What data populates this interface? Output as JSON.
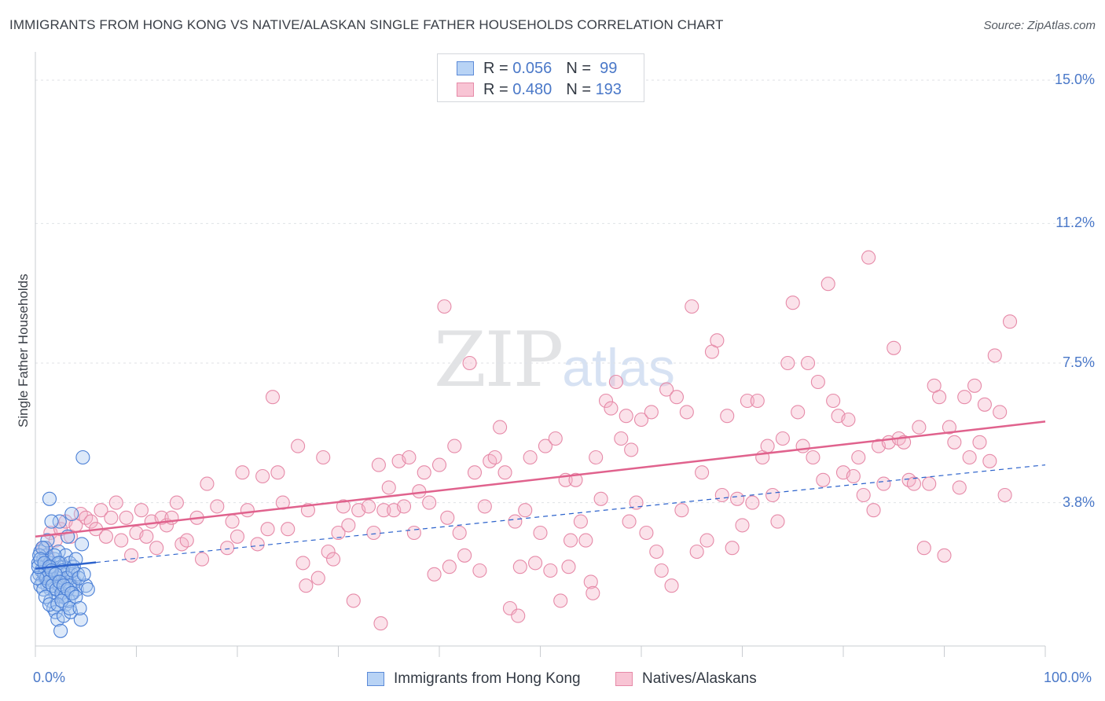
{
  "header": {
    "title": "IMMIGRANTS FROM HONG KONG VS NATIVE/ALASKAN SINGLE FATHER HOUSEHOLDS CORRELATION CHART",
    "source": "Source: ZipAtlas.com"
  },
  "watermark": {
    "zip": "ZIP",
    "atlas": "atlas"
  },
  "legend": {
    "rows": [
      {
        "r_label": "R =",
        "r_value": "0.056",
        "n_label": "N =",
        "n_value": "99"
      },
      {
        "r_label": "R =",
        "r_value": "0.480",
        "n_label": "N =",
        "n_value": "193"
      }
    ]
  },
  "colors": {
    "blue_fill": "#a9c8f0",
    "blue_stroke": "#4a7fd6",
    "blue_line": "#2d63cc",
    "pink_fill": "#f5b3c8",
    "pink_stroke": "#e68aa8",
    "pink_line": "#e0628d",
    "grid": "#dfe2e6",
    "axis_text": "#4a78c8"
  },
  "chart_data": {
    "type": "scatter",
    "title": "IMMIGRANTS FROM HONG KONG VS NATIVE/ALASKAN SINGLE FATHER HOUSEHOLDS CORRELATION CHART",
    "xlabel": "",
    "ylabel": "Single Father Households",
    "x_unit": "%",
    "y_unit": "%",
    "xlim": [
      0,
      100
    ],
    "ylim": [
      0,
      15.5
    ],
    "x_tick_labels": [
      "0.0%",
      "100.0%"
    ],
    "y_ticks": [
      {
        "value": 3.8,
        "label": "3.8%"
      },
      {
        "value": 7.5,
        "label": "7.5%"
      },
      {
        "value": 11.2,
        "label": "11.2%"
      },
      {
        "value": 15.0,
        "label": "15.0%"
      }
    ],
    "grid": "horizontal dashed",
    "legend_position": "bottom-center",
    "series": [
      {
        "name": "Immigrants from Hong Kong",
        "R": 0.056,
        "N": 99,
        "trend": {
          "x": [
            0,
            100
          ],
          "y": [
            2.05,
            4.8
          ],
          "observed_x_max": 6,
          "style": "solid within data range, dashed extrapolation"
        },
        "points": [
          [
            0.3,
            2.2
          ],
          [
            0.4,
            1.9
          ],
          [
            0.5,
            2.5
          ],
          [
            0.6,
            2.0
          ],
          [
            0.7,
            1.7
          ],
          [
            0.8,
            2.3
          ],
          [
            0.9,
            2.1
          ],
          [
            1.0,
            1.8
          ],
          [
            1.1,
            2.4
          ],
          [
            1.2,
            1.6
          ],
          [
            1.3,
            2.0
          ],
          [
            1.4,
            2.2
          ],
          [
            1.5,
            1.5
          ],
          [
            1.6,
            1.9
          ],
          [
            1.7,
            2.1
          ],
          [
            1.8,
            1.7
          ],
          [
            1.9,
            2.3
          ],
          [
            2.0,
            1.4
          ],
          [
            2.1,
            2.0
          ],
          [
            2.2,
            1.8
          ],
          [
            2.3,
            2.5
          ],
          [
            2.4,
            1.6
          ],
          [
            2.5,
            2.2
          ],
          [
            2.6,
            1.9
          ],
          [
            2.7,
            1.3
          ],
          [
            2.8,
            2.1
          ],
          [
            2.9,
            1.7
          ],
          [
            3.0,
            2.4
          ],
          [
            3.1,
            1.5
          ],
          [
            3.2,
            2.0
          ],
          [
            3.3,
            1.8
          ],
          [
            3.4,
            2.2
          ],
          [
            3.5,
            1.6
          ],
          [
            3.6,
            1.9
          ],
          [
            3.7,
            1.4
          ],
          [
            3.8,
            2.1
          ],
          [
            3.9,
            1.7
          ],
          [
            4.0,
            2.3
          ],
          [
            4.1,
            1.5
          ],
          [
            4.2,
            1.9
          ],
          [
            0.5,
            1.6
          ],
          [
            0.8,
            1.5
          ],
          [
            1.0,
            2.6
          ],
          [
            1.2,
            2.8
          ],
          [
            1.5,
            1.2
          ],
          [
            1.8,
            1.0
          ],
          [
            2.0,
            0.9
          ],
          [
            2.2,
            0.7
          ],
          [
            2.5,
            0.4
          ],
          [
            2.8,
            0.8
          ],
          [
            3.0,
            1.1
          ],
          [
            3.5,
            0.9
          ],
          [
            4.5,
            0.7
          ],
          [
            5.0,
            1.6
          ],
          [
            4.6,
            2.7
          ],
          [
            3.2,
            2.9
          ],
          [
            2.4,
            3.3
          ],
          [
            1.6,
            3.3
          ],
          [
            1.4,
            3.9
          ],
          [
            3.6,
            3.5
          ],
          [
            4.7,
            5.0
          ],
          [
            0.6,
            2.0
          ],
          [
            0.9,
            1.9
          ],
          [
            1.1,
            1.8
          ],
          [
            1.3,
            1.7
          ],
          [
            1.7,
            1.6
          ],
          [
            2.1,
            1.5
          ],
          [
            2.6,
            1.4
          ],
          [
            2.9,
            1.3
          ],
          [
            3.3,
            1.2
          ],
          [
            0.4,
            2.4
          ],
          [
            0.7,
            2.6
          ],
          [
            1.9,
            2.4
          ],
          [
            2.3,
            2.2
          ],
          [
            2.7,
            2.0
          ],
          [
            3.1,
            1.8
          ],
          [
            3.4,
            1.6
          ],
          [
            3.7,
            2.0
          ],
          [
            4.3,
            1.8
          ],
          [
            4.8,
            1.9
          ],
          [
            0.2,
            1.8
          ],
          [
            0.3,
            2.1
          ],
          [
            0.5,
            2.3
          ],
          [
            0.9,
            2.2
          ],
          [
            1.4,
            2.1
          ],
          [
            1.6,
            2.0
          ],
          [
            2.0,
            1.9
          ],
          [
            2.4,
            1.7
          ],
          [
            2.8,
            1.6
          ],
          [
            3.2,
            1.5
          ],
          [
            3.6,
            1.4
          ],
          [
            4.0,
            1.3
          ],
          [
            1.0,
            1.3
          ],
          [
            1.4,
            1.1
          ],
          [
            2.2,
            1.1
          ],
          [
            2.6,
            1.2
          ],
          [
            3.4,
            1.0
          ],
          [
            4.4,
            1.0
          ],
          [
            5.2,
            1.5
          ]
        ]
      },
      {
        "name": "Natives/Alaskans",
        "R": 0.48,
        "N": 193,
        "trend": {
          "x": [
            0,
            100
          ],
          "y": [
            2.9,
            5.95
          ]
        },
        "points": [
          [
            0.8,
            2.6
          ],
          [
            1.2,
            2.4
          ],
          [
            1.5,
            3.0
          ],
          [
            2.0,
            2.8
          ],
          [
            2.5,
            3.1
          ],
          [
            3.0,
            3.3
          ],
          [
            3.5,
            2.9
          ],
          [
            4.0,
            3.2
          ],
          [
            4.5,
            3.5
          ],
          [
            5.0,
            3.4
          ],
          [
            5.5,
            3.3
          ],
          [
            6.0,
            3.1
          ],
          [
            6.5,
            3.6
          ],
          [
            7.0,
            2.9
          ],
          [
            7.5,
            3.4
          ],
          [
            8.0,
            3.8
          ],
          [
            8.5,
            2.8
          ],
          [
            9.0,
            3.4
          ],
          [
            9.5,
            2.4
          ],
          [
            10.0,
            3.0
          ],
          [
            10.5,
            3.6
          ],
          [
            11.0,
            2.9
          ],
          [
            11.5,
            3.3
          ],
          [
            12.0,
            2.6
          ],
          [
            12.5,
            3.4
          ],
          [
            13.0,
            3.2
          ],
          [
            13.5,
            3.4
          ],
          [
            14.0,
            3.8
          ],
          [
            14.5,
            2.7
          ],
          [
            15.0,
            2.8
          ],
          [
            16.0,
            3.4
          ],
          [
            16.5,
            2.3
          ],
          [
            17.0,
            4.3
          ],
          [
            18.0,
            3.7
          ],
          [
            19.0,
            2.6
          ],
          [
            19.5,
            3.3
          ],
          [
            20.0,
            2.9
          ],
          [
            20.5,
            4.6
          ],
          [
            21.0,
            3.6
          ],
          [
            22.0,
            2.7
          ],
          [
            23.0,
            3.1
          ],
          [
            23.5,
            6.6
          ],
          [
            24.0,
            4.6
          ],
          [
            24.5,
            3.8
          ],
          [
            25.0,
            3.1
          ],
          [
            26.0,
            5.3
          ],
          [
            26.5,
            2.2
          ],
          [
            27.0,
            3.6
          ],
          [
            28.0,
            1.8
          ],
          [
            28.5,
            5.0
          ],
          [
            29.0,
            2.5
          ],
          [
            29.5,
            2.3
          ],
          [
            30.0,
            3.0
          ],
          [
            30.5,
            3.7
          ],
          [
            31.0,
            3.2
          ],
          [
            32.0,
            3.6
          ],
          [
            33.0,
            3.7
          ],
          [
            33.5,
            3.0
          ],
          [
            34.0,
            4.8
          ],
          [
            34.5,
            3.6
          ],
          [
            35.0,
            4.2
          ],
          [
            35.5,
            3.6
          ],
          [
            36.0,
            4.9
          ],
          [
            36.5,
            3.7
          ],
          [
            37.0,
            5.0
          ],
          [
            37.5,
            3.0
          ],
          [
            38.0,
            4.1
          ],
          [
            38.5,
            4.6
          ],
          [
            39.0,
            3.8
          ],
          [
            39.5,
            1.9
          ],
          [
            40.0,
            4.8
          ],
          [
            40.5,
            9.0
          ],
          [
            41.0,
            2.1
          ],
          [
            41.5,
            5.3
          ],
          [
            42.0,
            3.0
          ],
          [
            42.5,
            2.4
          ],
          [
            43.0,
            7.5
          ],
          [
            43.5,
            4.6
          ],
          [
            44.0,
            2.0
          ],
          [
            44.5,
            3.7
          ],
          [
            45.0,
            4.9
          ],
          [
            45.5,
            5.0
          ],
          [
            46.0,
            5.8
          ],
          [
            46.5,
            4.6
          ],
          [
            47.0,
            1.0
          ],
          [
            47.5,
            3.3
          ],
          [
            48.0,
            2.1
          ],
          [
            48.5,
            3.6
          ],
          [
            49.0,
            5.0
          ],
          [
            49.5,
            2.2
          ],
          [
            50.0,
            3.0
          ],
          [
            50.5,
            5.3
          ],
          [
            51.0,
            2.0
          ],
          [
            51.5,
            5.5
          ],
          [
            52.0,
            1.2
          ],
          [
            52.5,
            4.4
          ],
          [
            53.0,
            2.8
          ],
          [
            53.5,
            4.4
          ],
          [
            54.0,
            3.3
          ],
          [
            54.5,
            2.8
          ],
          [
            55.0,
            1.7
          ],
          [
            55.5,
            5.0
          ],
          [
            56.0,
            3.9
          ],
          [
            56.5,
            6.5
          ],
          [
            57.0,
            6.3
          ],
          [
            57.5,
            7.0
          ],
          [
            58.0,
            5.5
          ],
          [
            58.5,
            6.1
          ],
          [
            59.0,
            5.2
          ],
          [
            59.5,
            3.8
          ],
          [
            60.0,
            6.0
          ],
          [
            60.5,
            3.0
          ],
          [
            61.0,
            6.2
          ],
          [
            61.5,
            2.5
          ],
          [
            62.0,
            2.0
          ],
          [
            62.5,
            6.8
          ],
          [
            63.0,
            1.6
          ],
          [
            63.5,
            6.6
          ],
          [
            64.0,
            3.6
          ],
          [
            64.5,
            6.2
          ],
          [
            65.0,
            9.0
          ],
          [
            65.5,
            2.5
          ],
          [
            66.0,
            4.6
          ],
          [
            66.5,
            2.8
          ],
          [
            67.0,
            7.8
          ],
          [
            67.5,
            8.1
          ],
          [
            68.0,
            4.0
          ],
          [
            68.5,
            6.1
          ],
          [
            69.0,
            2.6
          ],
          [
            69.5,
            3.9
          ],
          [
            70.0,
            3.2
          ],
          [
            70.5,
            6.5
          ],
          [
            71.0,
            3.8
          ],
          [
            71.5,
            6.5
          ],
          [
            72.0,
            5.0
          ],
          [
            72.5,
            5.3
          ],
          [
            73.0,
            4.0
          ],
          [
            73.5,
            3.3
          ],
          [
            74.0,
            5.5
          ],
          [
            74.5,
            7.5
          ],
          [
            75.0,
            9.1
          ],
          [
            75.5,
            6.2
          ],
          [
            76.0,
            5.3
          ],
          [
            76.5,
            7.5
          ],
          [
            77.0,
            5.0
          ],
          [
            77.5,
            7.0
          ],
          [
            78.0,
            4.4
          ],
          [
            78.5,
            9.6
          ],
          [
            79.0,
            6.5
          ],
          [
            79.5,
            6.1
          ],
          [
            80.0,
            4.6
          ],
          [
            80.5,
            6.0
          ],
          [
            81.0,
            4.5
          ],
          [
            81.5,
            5.0
          ],
          [
            82.0,
            4.0
          ],
          [
            82.5,
            10.3
          ],
          [
            83.0,
            3.6
          ],
          [
            83.5,
            5.3
          ],
          [
            84.0,
            4.3
          ],
          [
            84.5,
            5.4
          ],
          [
            85.0,
            7.9
          ],
          [
            85.5,
            5.5
          ],
          [
            86.0,
            5.4
          ],
          [
            86.5,
            4.4
          ],
          [
            87.0,
            4.3
          ],
          [
            87.5,
            5.8
          ],
          [
            88.0,
            2.6
          ],
          [
            88.5,
            4.3
          ],
          [
            89.0,
            6.9
          ],
          [
            89.5,
            6.6
          ],
          [
            90.0,
            2.4
          ],
          [
            90.5,
            5.8
          ],
          [
            91.0,
            5.4
          ],
          [
            91.5,
            4.2
          ],
          [
            92.0,
            6.6
          ],
          [
            92.5,
            5.0
          ],
          [
            93.0,
            6.9
          ],
          [
            93.5,
            5.4
          ],
          [
            94.0,
            6.4
          ],
          [
            94.5,
            4.9
          ],
          [
            95.0,
            7.7
          ],
          [
            95.5,
            6.2
          ],
          [
            96.0,
            4.0
          ],
          [
            96.5,
            8.6
          ],
          [
            22.5,
            4.5
          ],
          [
            26.8,
            1.6
          ],
          [
            31.5,
            1.2
          ],
          [
            34.2,
            0.6
          ],
          [
            40.8,
            3.4
          ],
          [
            47.8,
            0.8
          ],
          [
            52.8,
            2.1
          ],
          [
            55.2,
            1.4
          ],
          [
            58.8,
            3.3
          ]
        ]
      }
    ]
  },
  "bottom_legend": [
    "Immigrants from Hong Kong",
    "Natives/Alaskans"
  ]
}
